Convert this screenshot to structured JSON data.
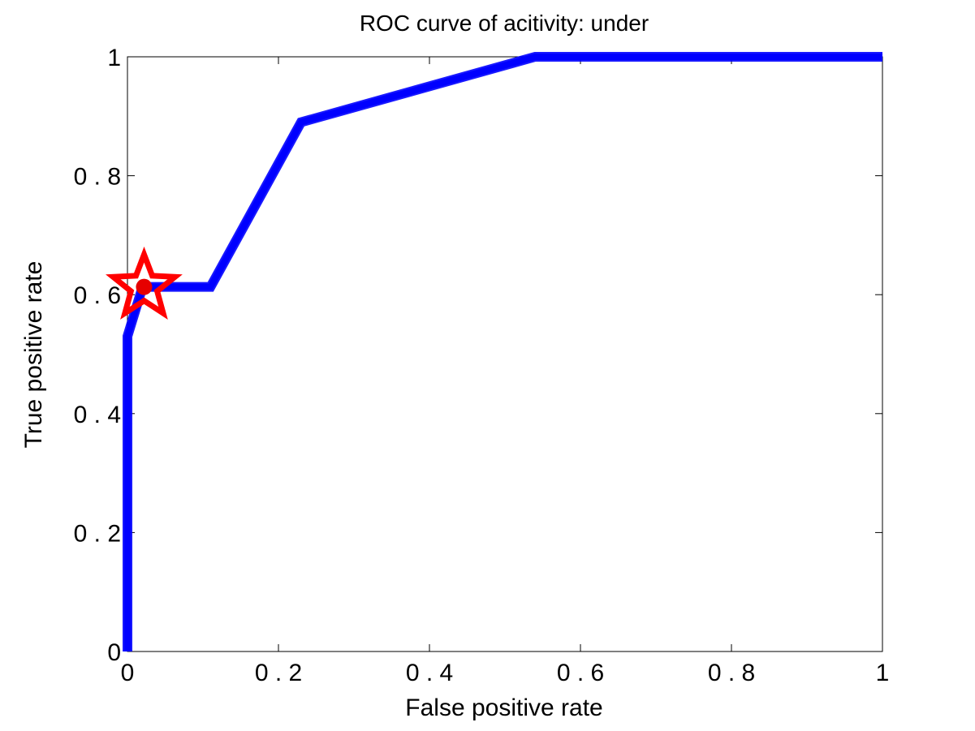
{
  "chart_data": {
    "type": "line",
    "title": "ROC curve of acitivity: under",
    "xlabel": "False positive rate",
    "ylabel": "True positive rate",
    "xlim": [
      0,
      1
    ],
    "ylim": [
      0,
      1
    ],
    "grid": false,
    "x_ticks": [
      0,
      0.2,
      0.4,
      0.6,
      0.8,
      1
    ],
    "y_ticks": [
      0,
      0.2,
      0.4,
      0.6,
      0.8,
      1
    ],
    "x_tick_labels": [
      "0",
      "0 . 2",
      "0 . 4",
      "0 . 6",
      "0 . 8",
      "1"
    ],
    "y_tick_labels": [
      "0",
      "0 . 2",
      "0 . 4",
      "0 . 6",
      "0 . 8",
      "1"
    ],
    "series": [
      {
        "color": "#0000ff",
        "x": [
          0,
          0,
          0.02,
          0.11,
          0.23,
          0.54,
          1
        ],
        "y": [
          0,
          0.53,
          0.613,
          0.613,
          0.89,
          1,
          1
        ]
      }
    ],
    "marker": {
      "shape": "star",
      "color": "#ff0000",
      "dot_color": "#e60000",
      "x": 0.022,
      "y": 0.613
    }
  }
}
